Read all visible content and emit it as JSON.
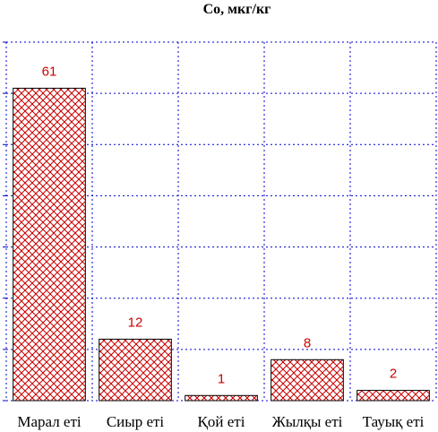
{
  "chart_data": {
    "type": "bar",
    "title": "Co, мкг/кг",
    "categories": [
      "Марал еті",
      "Сиыр еті",
      "Қой еті",
      "Жылқы еті",
      "Тауық еті"
    ],
    "values": [
      61,
      12,
      1,
      8,
      2
    ],
    "ylim": [
      0,
      70
    ],
    "grid": true,
    "colors": {
      "bar_fill": "#ffffff",
      "bar_pattern": "#cc0000",
      "bar_outline": "#000000",
      "value_label": "#cc0000",
      "grid": "#0000cc"
    }
  }
}
